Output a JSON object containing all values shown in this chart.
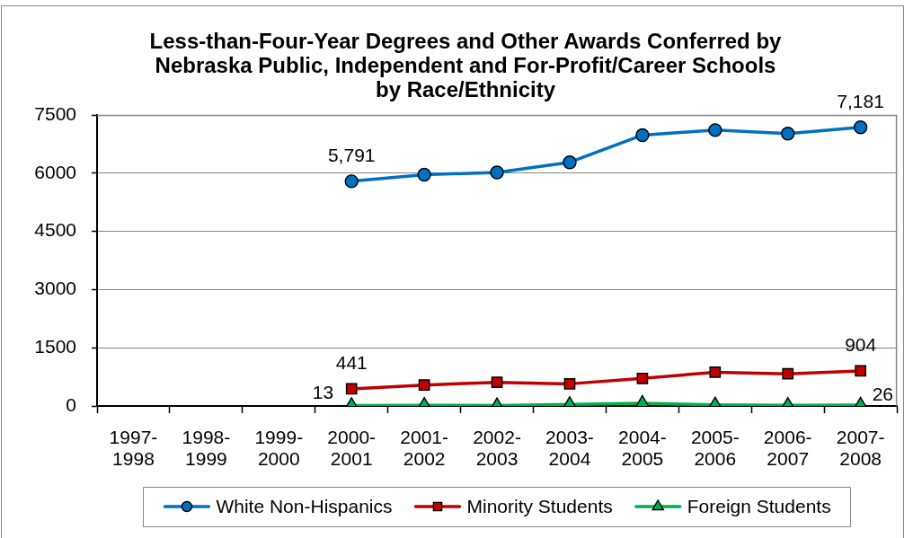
{
  "chart_data": {
    "type": "line",
    "title": "Less-than-Four-Year Degrees and Other Awards Conferred by\nNebraska Public, Independent and For-Profit/Career Schools\nby Race/Ethnicity",
    "categories": [
      "1997-1998",
      "1998-1999",
      "1999-2000",
      "2000-2001",
      "2001-2002",
      "2002-2003",
      "2003-2004",
      "2004-2005",
      "2005-2006",
      "2006-2007",
      "2007-2008"
    ],
    "series": [
      {
        "name": "White Non-Hispanics",
        "color": "#0070c0",
        "marker": "circle",
        "values": [
          null,
          null,
          null,
          5791,
          5960,
          6020,
          6280,
          6980,
          7110,
          7020,
          7181
        ],
        "value_labels": [
          null,
          null,
          null,
          "5,791",
          null,
          null,
          null,
          null,
          null,
          null,
          "7,181"
        ]
      },
      {
        "name": "Minority Students",
        "color": "#c00000",
        "marker": "square",
        "values": [
          null,
          null,
          null,
          441,
          540,
          610,
          570,
          710,
          870,
          830,
          904
        ],
        "value_labels": [
          null,
          null,
          null,
          "441",
          null,
          null,
          null,
          null,
          null,
          null,
          "904"
        ]
      },
      {
        "name": "Foreign Students",
        "color": "#00b050",
        "marker": "triangle",
        "values": [
          null,
          null,
          null,
          13,
          20,
          10,
          40,
          70,
          30,
          20,
          26
        ],
        "value_labels": [
          null,
          null,
          null,
          "13",
          null,
          null,
          null,
          null,
          null,
          null,
          "26"
        ]
      }
    ],
    "ylim": [
      0,
      7500
    ],
    "yticks": [
      0,
      1500,
      3000,
      4500,
      6000,
      7500
    ],
    "grid": "y",
    "legend": "bottom",
    "line_style": "solid"
  }
}
